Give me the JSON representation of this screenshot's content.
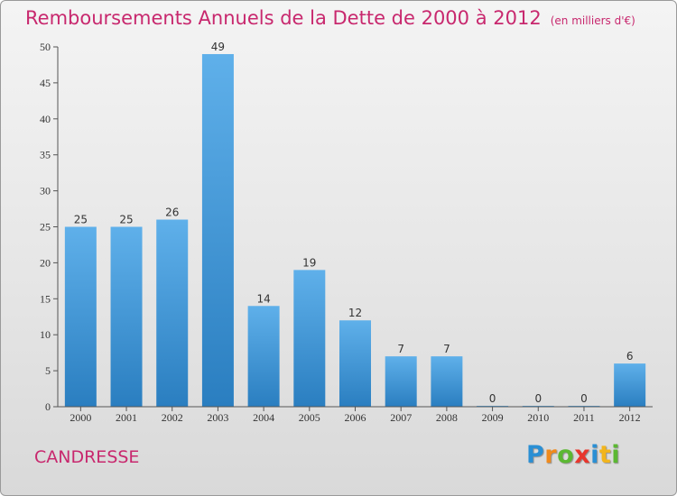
{
  "header": {
    "title": "Remboursements Annuels de la Dette de 2000 à 2012",
    "unit": "(en milliers d'€)"
  },
  "footer": {
    "place": "CANDRESSE",
    "logo_letters": [
      {
        "ch": "P",
        "color": "#2a8fd4"
      },
      {
        "ch": "r",
        "color": "#f08a1c"
      },
      {
        "ch": "o",
        "color": "#5bb832"
      },
      {
        "ch": "x",
        "color": "#e8362d"
      },
      {
        "ch": "i",
        "color": "#2a8fd4"
      },
      {
        "ch": "t",
        "color": "#f2b51c"
      },
      {
        "ch": "i",
        "color": "#5bb832"
      }
    ]
  },
  "chart_data": {
    "type": "bar",
    "categories": [
      "2000",
      "2001",
      "2002",
      "2003",
      "2004",
      "2005",
      "2006",
      "2007",
      "2008",
      "2009",
      "2010",
      "2011",
      "2012"
    ],
    "values": [
      25,
      25,
      26,
      49,
      14,
      19,
      12,
      7,
      7,
      0,
      0,
      0,
      6
    ],
    "yticks": [
      0,
      5,
      10,
      15,
      20,
      25,
      30,
      35,
      40,
      45,
      50
    ],
    "ylim": [
      0,
      50
    ],
    "grid": false,
    "bar_color_top": "#5fb0ea",
    "bar_color_bottom": "#2a7ec0",
    "title_color": "#c8286e"
  }
}
